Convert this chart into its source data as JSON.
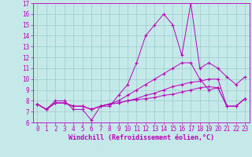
{
  "xlabel": "Windchill (Refroidissement éolien,°C)",
  "xlim": [
    -0.5,
    23.5
  ],
  "ylim": [
    6,
    17
  ],
  "xticks": [
    0,
    1,
    2,
    3,
    4,
    5,
    6,
    7,
    8,
    9,
    10,
    11,
    12,
    13,
    14,
    15,
    16,
    17,
    18,
    19,
    20,
    21,
    22,
    23
  ],
  "yticks": [
    6,
    7,
    8,
    9,
    10,
    11,
    12,
    13,
    14,
    15,
    16,
    17
  ],
  "bg_color": "#c5e8e8",
  "line_color": "#bb00bb",
  "grid_color": "#99cccc",
  "series": [
    [
      7.7,
      7.2,
      8.0,
      8.0,
      7.2,
      7.2,
      6.2,
      7.5,
      7.5,
      8.5,
      9.5,
      11.5,
      14.0,
      15.0,
      16.0,
      15.0,
      12.2,
      17.0,
      11.0,
      11.5,
      11.0,
      10.2,
      9.5,
      10.2
    ],
    [
      7.7,
      7.2,
      7.8,
      7.8,
      7.5,
      7.5,
      7.2,
      7.5,
      7.7,
      8.0,
      8.5,
      9.0,
      9.5,
      10.0,
      10.5,
      11.0,
      11.5,
      11.5,
      10.0,
      9.0,
      9.2,
      7.5,
      7.5,
      8.2
    ],
    [
      7.7,
      7.2,
      7.8,
      7.8,
      7.5,
      7.5,
      7.2,
      7.5,
      7.7,
      7.8,
      8.0,
      8.2,
      8.5,
      8.7,
      9.0,
      9.3,
      9.5,
      9.7,
      9.8,
      10.0,
      10.0,
      7.5,
      7.5,
      8.2
    ],
    [
      7.7,
      7.2,
      7.8,
      7.8,
      7.5,
      7.5,
      7.2,
      7.5,
      7.7,
      7.8,
      8.0,
      8.1,
      8.2,
      8.3,
      8.5,
      8.6,
      8.8,
      9.0,
      9.2,
      9.3,
      9.2,
      7.5,
      7.5,
      8.2
    ]
  ],
  "tick_fontsize": 5.5,
  "xlabel_fontsize": 6,
  "linewidth": 0.7,
  "markersize": 3.5
}
